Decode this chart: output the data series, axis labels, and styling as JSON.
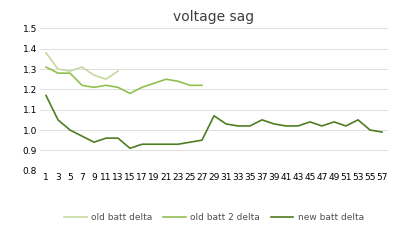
{
  "title": "voltage sag",
  "x_ticks": [
    1,
    3,
    5,
    7,
    9,
    11,
    13,
    15,
    17,
    19,
    21,
    23,
    25,
    27,
    29,
    31,
    33,
    35,
    37,
    39,
    41,
    43,
    45,
    47,
    49,
    51,
    53,
    55,
    57
  ],
  "ylim": [
    0.8,
    1.5
  ],
  "yticks": [
    0.8,
    0.9,
    1.0,
    1.1,
    1.2,
    1.3,
    1.4,
    1.5
  ],
  "old_batt_delta": {
    "x": [
      1,
      3,
      5,
      7,
      9,
      11,
      13
    ],
    "y": [
      1.38,
      1.3,
      1.29,
      1.31,
      1.27,
      1.25,
      1.29
    ],
    "color": "#c6d9a0",
    "label": "old batt delta",
    "linewidth": 1.2
  },
  "old_batt_2_delta": {
    "x": [
      1,
      3,
      5,
      7,
      9,
      11,
      13,
      15,
      17,
      19,
      21,
      23,
      25,
      27
    ],
    "y": [
      1.31,
      1.28,
      1.28,
      1.22,
      1.21,
      1.22,
      1.21,
      1.18,
      1.21,
      1.23,
      1.25,
      1.24,
      1.22,
      1.22
    ],
    "color": "#92c050",
    "label": "old batt 2 delta",
    "linewidth": 1.2
  },
  "new_batt_delta": {
    "x": [
      1,
      3,
      5,
      7,
      9,
      11,
      13,
      15,
      17,
      19,
      21,
      23,
      25,
      27,
      29,
      31,
      33,
      35,
      37,
      39,
      41,
      43,
      45,
      47,
      49,
      51,
      53,
      55,
      57
    ],
    "y": [
      1.17,
      1.05,
      1.0,
      0.97,
      0.94,
      0.96,
      0.96,
      0.91,
      0.93,
      0.93,
      0.93,
      0.93,
      0.94,
      0.95,
      1.07,
      1.03,
      1.02,
      1.02,
      1.05,
      1.03,
      1.02,
      1.02,
      1.04,
      1.02,
      1.04,
      1.02,
      1.05,
      1.0,
      0.99
    ],
    "color": "#4e7d23",
    "label": "new batt delta",
    "linewidth": 1.2
  },
  "background_color": "#ffffff",
  "grid_color": "#d9d9d9",
  "title_fontsize": 10,
  "tick_fontsize": 6.5,
  "legend_fontsize": 6.5
}
